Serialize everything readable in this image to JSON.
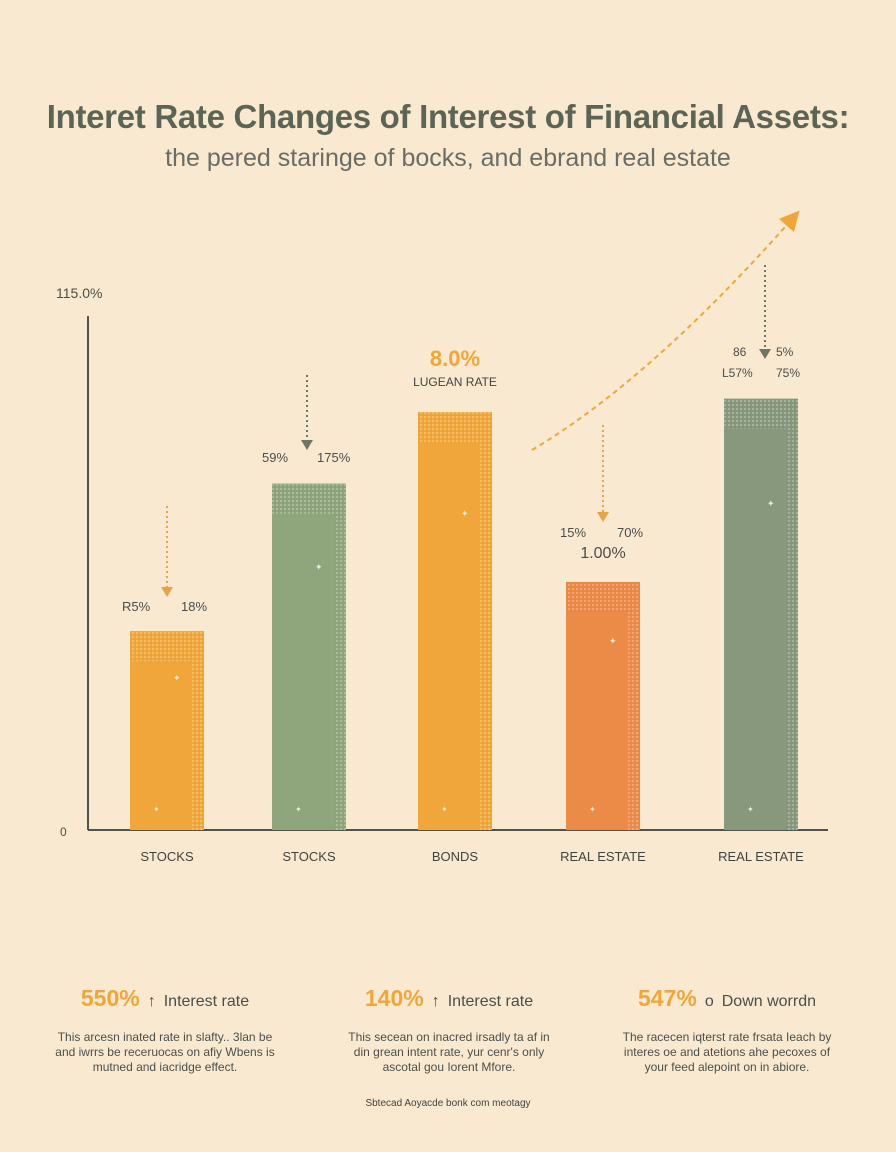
{
  "title": "Interet Rate Changes of Interest of Financial Assets:",
  "subtitle": "the pered staringe of bocks, and ebrand real estate",
  "chart_data": {
    "type": "bar",
    "ylim": [
      0,
      115
    ],
    "y_top_label": "115.0%",
    "y_zero_label": "0",
    "categories": [
      "STOCKS",
      "STOCKS",
      "BONDS",
      "REAL ESTATE",
      "REAL ESTATE"
    ],
    "values": [
      44.5,
      77.5,
      93.5,
      55.5,
      96.5
    ],
    "colors": [
      "#f0a63a",
      "#8fa57c",
      "#f0a63a",
      "#ec8a48",
      "#88987c"
    ],
    "annotations": [
      {
        "left": "R5%",
        "right": "18%",
        "arrow": "down"
      },
      {
        "left": "59%",
        "right": "175%",
        "arrow": "down"
      },
      {
        "value": "8.0%",
        "label": "LUGEAN RATE"
      },
      {
        "left": "15%",
        "right": "70%",
        "value": "1.00%",
        "arrow": "down"
      },
      {
        "left": "86",
        "right": "5%",
        "left2": "L57%",
        "right2": "75%",
        "arrow": "down"
      }
    ],
    "trend_arrow": "up"
  },
  "footer": [
    {
      "value": "550%",
      "symbol": "↑",
      "label": "Interest rate",
      "desc": [
        "This arcesn inated rate in slafty.. 3lan be",
        "and iwrrs be receruocas on afiy Wbens is",
        "mutned and iacridge effect."
      ]
    },
    {
      "value": "140%",
      "symbol": "↑",
      "label": "Interest rate",
      "desc": [
        "This secean on inacred irsadly ta af in",
        "din grean intent rate, yur cenr's only",
        "ascotal gou Iorent Mfore."
      ]
    },
    {
      "value": "547%",
      "symbol": "o",
      "label": "Down worrdn",
      "desc": [
        "The racecen iqterst rate frsata Ieach by",
        "interes oe and atetions ahe pecoxes of",
        "your feed alepoint on in abiore."
      ]
    }
  ],
  "source": "Sbtecad Aoyacde bonk com meotagy"
}
